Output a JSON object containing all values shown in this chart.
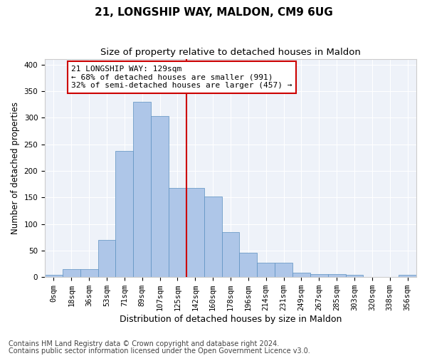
{
  "title1": "21, LONGSHIP WAY, MALDON, CM9 6UG",
  "title2": "Size of property relative to detached houses in Maldon",
  "xlabel": "Distribution of detached houses by size in Maldon",
  "ylabel": "Number of detached properties",
  "footnote1": "Contains HM Land Registry data © Crown copyright and database right 2024.",
  "footnote2": "Contains public sector information licensed under the Open Government Licence v3.0.",
  "bar_labels": [
    "0sqm",
    "18sqm",
    "36sqm",
    "53sqm",
    "71sqm",
    "89sqm",
    "107sqm",
    "125sqm",
    "142sqm",
    "160sqm",
    "178sqm",
    "196sqm",
    "214sqm",
    "231sqm",
    "249sqm",
    "267sqm",
    "285sqm",
    "303sqm",
    "320sqm",
    "338sqm",
    "356sqm"
  ],
  "bar_values": [
    4,
    15,
    15,
    70,
    237,
    330,
    303,
    168,
    168,
    151,
    85,
    46,
    27,
    27,
    8,
    5,
    5,
    4,
    0,
    0,
    4
  ],
  "bar_color": "#aec6e8",
  "bar_edge_color": "#5b90c0",
  "vline_x": 7.5,
  "vline_color": "#cc0000",
  "annotation_text": "21 LONGSHIP WAY: 129sqm\n← 68% of detached houses are smaller (991)\n32% of semi-detached houses are larger (457) →",
  "annotation_box_color": "#ffffff",
  "annotation_box_edge": "#cc0000",
  "ylim": [
    0,
    410
  ],
  "background_color": "#eef2f9",
  "grid_color": "#ffffff",
  "title1_fontsize": 11,
  "title2_fontsize": 9.5,
  "xlabel_fontsize": 9,
  "ylabel_fontsize": 8.5,
  "tick_fontsize": 7.5,
  "footnote_fontsize": 7,
  "ann_fontsize": 8
}
